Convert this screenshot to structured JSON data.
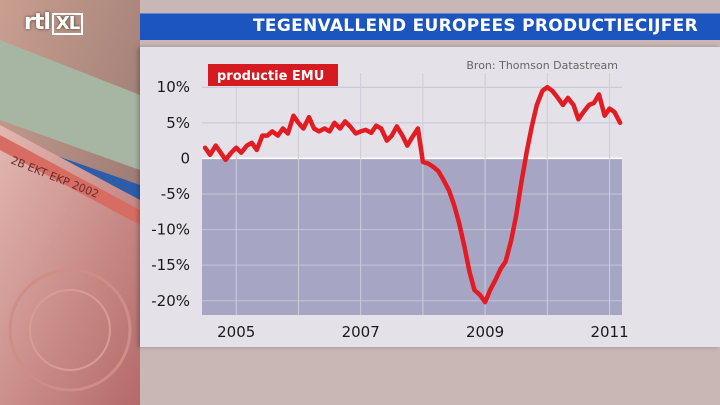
{
  "logo": {
    "brand": "rtl",
    "suffix": "XL"
  },
  "header": {
    "title": "TEGENVALLEND EUROPEES PRODUCTIECIJFER"
  },
  "source": "Bron: Thomson Datastream",
  "colors": {
    "banner": "#1c54c0",
    "line": "#e31b23",
    "legend_bg": "#d61a22"
  },
  "chart_data": {
    "type": "line",
    "series": [
      {
        "name": "productie EMU",
        "x": [
          2004.5,
          2004.58,
          2004.67,
          2004.75,
          2004.83,
          2004.92,
          2005.0,
          2005.08,
          2005.17,
          2005.25,
          2005.33,
          2005.42,
          2005.5,
          2005.58,
          2005.67,
          2005.75,
          2005.83,
          2005.92,
          2006.0,
          2006.08,
          2006.17,
          2006.25,
          2006.33,
          2006.42,
          2006.5,
          2006.58,
          2006.67,
          2006.75,
          2006.83,
          2006.92,
          2007.0,
          2007.08,
          2007.17,
          2007.25,
          2007.33,
          2007.42,
          2007.5,
          2007.58,
          2007.67,
          2007.75,
          2007.83,
          2007.92,
          2008.0,
          2008.08,
          2008.17,
          2008.25,
          2008.33,
          2008.42,
          2008.5,
          2008.58,
          2008.67,
          2008.75,
          2008.83,
          2008.92,
          2009.0,
          2009.08,
          2009.17,
          2009.25,
          2009.33,
          2009.42,
          2009.5,
          2009.58,
          2009.67,
          2009.75,
          2009.83,
          2009.92,
          2010.0,
          2010.08,
          2010.17,
          2010.25,
          2010.33,
          2010.42,
          2010.5,
          2010.58,
          2010.67,
          2010.75,
          2010.83,
          2010.92,
          2011.0,
          2011.08,
          2011.17
        ],
        "values": [
          1.5,
          0.5,
          1.8,
          0.8,
          -0.2,
          0.8,
          1.5,
          0.8,
          1.8,
          2.2,
          1.2,
          3.2,
          3.2,
          3.8,
          3.2,
          4.2,
          3.5,
          6.0,
          5.0,
          4.2,
          5.8,
          4.2,
          3.8,
          4.2,
          3.8,
          5.0,
          4.2,
          5.2,
          4.5,
          3.5,
          3.8,
          4.0,
          3.6,
          4.6,
          4.2,
          2.5,
          3.2,
          4.5,
          3.2,
          1.8,
          3.0,
          4.2,
          -0.5,
          -0.7,
          -1.2,
          -1.8,
          -3.0,
          -4.5,
          -6.5,
          -9.0,
          -12.5,
          -16.0,
          -18.5,
          -19.2,
          -20.2,
          -18.5,
          -17.0,
          -15.5,
          -14.5,
          -11.5,
          -8.0,
          -3.5,
          1.0,
          4.5,
          7.5,
          9.5,
          10.0,
          9.5,
          8.5,
          7.5,
          8.5,
          7.5,
          5.5,
          6.5,
          7.5,
          7.8,
          9.0,
          6.0,
          7.0,
          6.5,
          5.0
        ]
      }
    ],
    "xticks": [
      2005,
      2007,
      2009,
      2011
    ],
    "xtick_labels": [
      "2005",
      "2007",
      "2009",
      "2011"
    ],
    "yticks": [
      10,
      5,
      0,
      -5,
      -10,
      -15,
      -20
    ],
    "ytick_labels": [
      "10%",
      "5%",
      "0",
      "-5%",
      "-10%",
      "-15%",
      "-20%"
    ],
    "xlim": [
      2004.45,
      2011.2
    ],
    "ylim": [
      -22,
      12
    ],
    "title": "TEGENVALLEND EUROPEES PRODUCTIECIJFER",
    "xlabel": "",
    "ylabel": "",
    "grid": true,
    "legend_position": "top-left",
    "shaded_region": {
      "y_from": 0,
      "y_to": -22
    }
  }
}
